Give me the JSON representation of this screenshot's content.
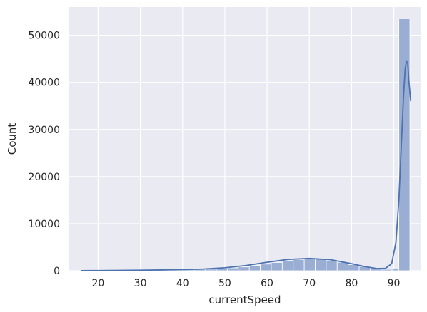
{
  "chart_data": {
    "type": "bar",
    "style": "histogram-with-kde",
    "title": "",
    "xlabel": "currentSpeed",
    "ylabel": "Count",
    "xlim": [
      13,
      96.5
    ],
    "ylim": [
      0,
      56000
    ],
    "x_ticks": [
      20,
      30,
      40,
      50,
      60,
      70,
      80,
      90
    ],
    "y_ticks": [
      0,
      10000,
      20000,
      30000,
      40000,
      50000
    ],
    "grid": true,
    "background_color": "#eaeaf2",
    "bar_color": "#9aaed4",
    "bar_edge_color": "#ffffff",
    "line_color": "#4c72b0",
    "bin_width": 2.6,
    "bins": [
      {
        "x0": 16.8,
        "count": 20
      },
      {
        "x0": 19.4,
        "count": 30
      },
      {
        "x0": 22.0,
        "count": 40
      },
      {
        "x0": 24.6,
        "count": 50
      },
      {
        "x0": 27.2,
        "count": 60
      },
      {
        "x0": 29.8,
        "count": 80
      },
      {
        "x0": 32.4,
        "count": 100
      },
      {
        "x0": 35.0,
        "count": 120
      },
      {
        "x0": 37.6,
        "count": 160
      },
      {
        "x0": 40.2,
        "count": 200
      },
      {
        "x0": 42.8,
        "count": 260
      },
      {
        "x0": 45.4,
        "count": 340
      },
      {
        "x0": 48.0,
        "count": 450
      },
      {
        "x0": 50.6,
        "count": 600
      },
      {
        "x0": 53.2,
        "count": 800
      },
      {
        "x0": 55.8,
        "count": 1050
      },
      {
        "x0": 58.4,
        "count": 1400
      },
      {
        "x0": 61.0,
        "count": 1750
      },
      {
        "x0": 63.6,
        "count": 2100
      },
      {
        "x0": 66.2,
        "count": 2350
      },
      {
        "x0": 68.8,
        "count": 2500
      },
      {
        "x0": 71.4,
        "count": 2450
      },
      {
        "x0": 74.0,
        "count": 2200
      },
      {
        "x0": 76.6,
        "count": 1800
      },
      {
        "x0": 79.2,
        "count": 1300
      },
      {
        "x0": 81.8,
        "count": 900
      },
      {
        "x0": 84.4,
        "count": 550
      },
      {
        "x0": 87.0,
        "count": 300
      },
      {
        "x0": 89.6,
        "count": 400
      },
      {
        "x0": 91.2,
        "count": 53500
      }
    ],
    "kde": {
      "x": [
        16,
        20,
        25,
        30,
        35,
        40,
        45,
        50,
        55,
        60,
        65,
        70,
        75,
        80,
        83,
        86,
        88,
        89.5,
        90.5,
        91.2,
        91.8,
        92.3,
        92.7,
        93.0,
        93.3,
        93.6,
        94.0
      ],
      "y": [
        20,
        40,
        70,
        110,
        160,
        230,
        360,
        620,
        1100,
        1800,
        2400,
        2600,
        2350,
        1500,
        900,
        450,
        500,
        1500,
        6000,
        15000,
        27000,
        37000,
        43000,
        44500,
        44000,
        40000,
        36000
      ]
    }
  }
}
